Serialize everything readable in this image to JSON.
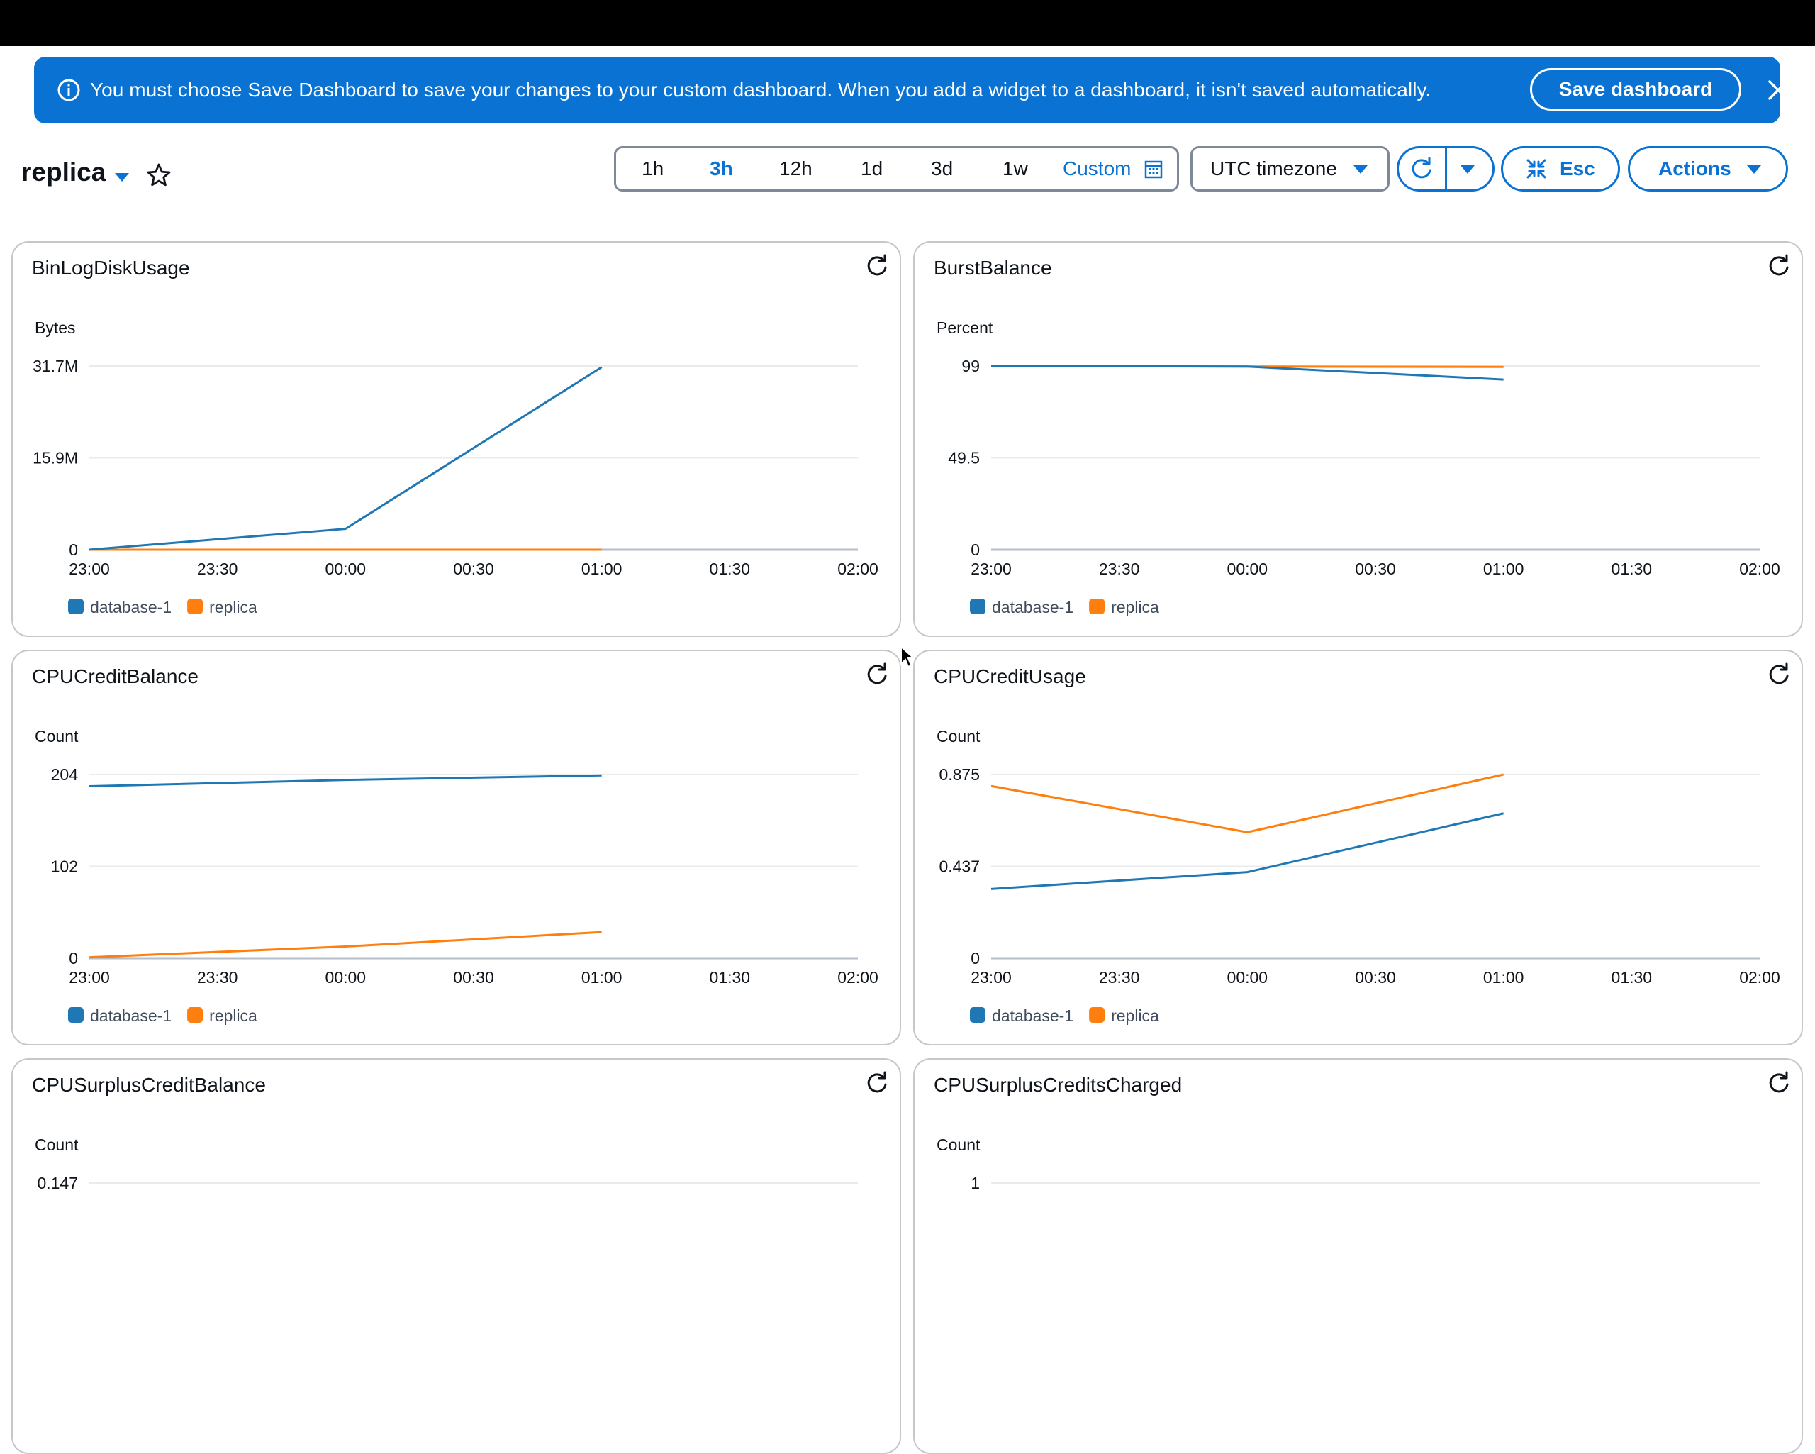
{
  "flash": {
    "message": "You must choose Save Dashboard to save your changes to your custom dashboard. When you add a widget to a dashboard, it isn't saved automatically.",
    "save_label": "Save dashboard"
  },
  "dashboard": {
    "title": "replica"
  },
  "time_range": {
    "options": [
      "1h",
      "3h",
      "12h",
      "1d",
      "3d",
      "1w"
    ],
    "selected": "3h",
    "custom_label": "Custom"
  },
  "timezone": {
    "label": "UTC timezone"
  },
  "toolbar": {
    "esc_label": "Esc",
    "actions_label": "Actions"
  },
  "colors": {
    "database-1": "#1f77b4",
    "replica": "#ff7f0e",
    "accent": "#0972d3"
  },
  "widgets": [
    {
      "title": "BinLogDiskUsage",
      "ylabel": "Bytes",
      "chart_data": {
        "type": "line",
        "x": [
          "23:00",
          "00:00",
          "01:00"
        ],
        "xticks": [
          "23:00",
          "23:30",
          "00:00",
          "00:30",
          "01:00",
          "01:30",
          "02:00"
        ],
        "yticks": [
          "0",
          "15.9M",
          "31.7M"
        ],
        "ylim": [
          0,
          31.7
        ],
        "series": [
          {
            "name": "database-1",
            "values": [
              0,
              3.6,
              31.5
            ]
          },
          {
            "name": "replica",
            "values": [
              0,
              0,
              0
            ]
          }
        ]
      }
    },
    {
      "title": "BurstBalance",
      "ylabel": "Percent",
      "chart_data": {
        "type": "line",
        "x": [
          "23:00",
          "00:00",
          "01:00"
        ],
        "xticks": [
          "23:00",
          "23:30",
          "00:00",
          "00:30",
          "01:00",
          "01:30",
          "02:00"
        ],
        "yticks": [
          "0",
          "49.5",
          "99"
        ],
        "ylim": [
          0,
          99
        ],
        "series": [
          {
            "name": "database-1",
            "values": [
              99,
              98.7,
              91.7
            ]
          },
          {
            "name": "replica",
            "values": [
              99,
              98.7,
              98.5
            ]
          }
        ]
      }
    },
    {
      "title": "CPUCreditBalance",
      "ylabel": "Count",
      "chart_data": {
        "type": "line",
        "x": [
          "23:00",
          "00:00",
          "01:00"
        ],
        "xticks": [
          "23:00",
          "23:30",
          "00:00",
          "00:30",
          "01:00",
          "01:30",
          "02:00"
        ],
        "yticks": [
          "0",
          "102",
          "204"
        ],
        "ylim": [
          0,
          204
        ],
        "series": [
          {
            "name": "database-1",
            "values": [
              191,
              198,
              203
            ]
          },
          {
            "name": "replica",
            "values": [
              1,
              13,
              29
            ]
          }
        ]
      }
    },
    {
      "title": "CPUCreditUsage",
      "ylabel": "Count",
      "chart_data": {
        "type": "line",
        "x": [
          "23:00",
          "00:00",
          "01:00"
        ],
        "xticks": [
          "23:00",
          "23:30",
          "00:00",
          "00:30",
          "01:00",
          "01:30",
          "02:00"
        ],
        "yticks": [
          "0",
          "0.437",
          "0.875"
        ],
        "ylim": [
          0,
          0.875
        ],
        "series": [
          {
            "name": "database-1",
            "values": [
              0.33,
              0.41,
              0.69
            ]
          },
          {
            "name": "replica",
            "values": [
              0.82,
              0.6,
              0.875
            ]
          }
        ]
      }
    },
    {
      "title": "CPUSurplusCreditBalance",
      "ylabel": "Count",
      "chart_data": {
        "type": "line",
        "x": [],
        "xticks": [],
        "yticks": [
          "0.147"
        ],
        "ylim": [
          0,
          0.147
        ],
        "series": []
      }
    },
    {
      "title": "CPUSurplusCreditsCharged",
      "ylabel": "Count",
      "chart_data": {
        "type": "line",
        "x": [],
        "xticks": [],
        "yticks": [
          "1"
        ],
        "ylim": [
          0,
          1
        ],
        "series": []
      }
    }
  ]
}
